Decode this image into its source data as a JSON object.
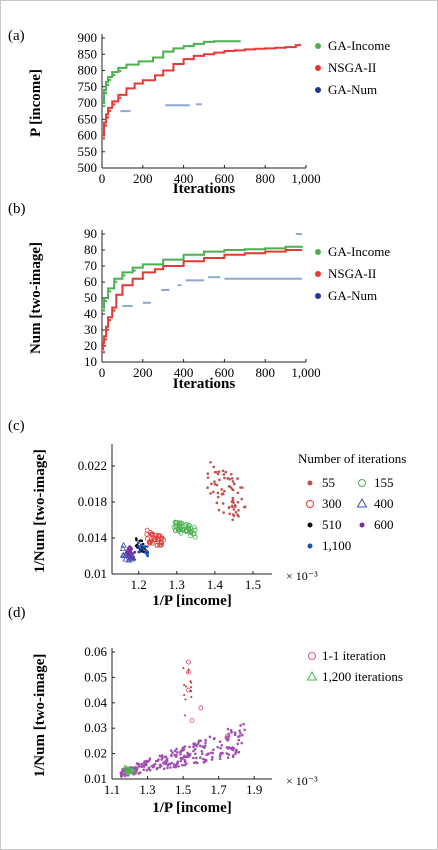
{
  "figure": {
    "border_color": "#c8c8c8"
  },
  "chart_data": [
    {
      "panel_label": "(a)",
      "type": "line",
      "xlabel": "Iterations",
      "ylabel": "P [income]",
      "xlim": [
        0,
        1000
      ],
      "ylim": [
        500,
        900
      ],
      "xticks": [
        "0",
        "200",
        "400",
        "600",
        "800",
        "1,000"
      ],
      "yticks": [
        "500",
        "550",
        "600",
        "650",
        "700",
        "750",
        "800",
        "850",
        "900"
      ],
      "legend_position": "right",
      "series": [
        {
          "name": "GA-Income",
          "color": "#4caf50",
          "x": [
            0,
            10,
            20,
            30,
            50,
            80,
            120,
            180,
            250,
            300,
            350,
            400,
            450,
            500,
            550,
            600,
            680
          ],
          "y": [
            700,
            740,
            765,
            780,
            795,
            808,
            818,
            828,
            840,
            858,
            868,
            875,
            882,
            888,
            890,
            890,
            890
          ]
        },
        {
          "name": "NSGA-II",
          "color": "#e53935",
          "x": [
            0,
            10,
            20,
            30,
            50,
            80,
            120,
            160,
            200,
            260,
            300,
            350,
            400,
            450,
            500,
            550,
            600,
            650,
            700,
            750,
            800,
            850,
            900,
            950,
            970
          ],
          "y": [
            600,
            640,
            665,
            685,
            705,
            725,
            745,
            760,
            770,
            785,
            800,
            820,
            835,
            845,
            850,
            855,
            860,
            862,
            865,
            867,
            868,
            870,
            872,
            878,
            882
          ]
        },
        {
          "name": "GA-Num",
          "color": "#1f3a93",
          "line_color": "#8fa8d0",
          "segments": [
            [
              [
                90,
                675
              ],
              [
                140,
                675
              ]
            ],
            [
              [
                310,
                693
              ],
              [
                430,
                693
              ]
            ],
            [
              [
                460,
                696
              ],
              [
                490,
                696
              ]
            ]
          ]
        }
      ]
    },
    {
      "panel_label": "(b)",
      "type": "line",
      "xlabel": "Iterations",
      "ylabel": "Num [two-image]",
      "xlim": [
        0,
        1000
      ],
      "ylim": [
        10,
        90
      ],
      "xticks": [
        "0",
        "200",
        "400",
        "600",
        "800",
        "1,000"
      ],
      "yticks": [
        "10",
        "20",
        "30",
        "40",
        "50",
        "60",
        "70",
        "80",
        "90"
      ],
      "legend_position": "right",
      "series": [
        {
          "name": "GA-Income",
          "color": "#4caf50",
          "x": [
            0,
            10,
            30,
            60,
            100,
            150,
            200,
            300,
            400,
            500,
            600,
            700,
            800,
            900,
            980
          ],
          "y": [
            44,
            50,
            56,
            62,
            66,
            69,
            71,
            74,
            77,
            79,
            80,
            80.5,
            81,
            82,
            82.5
          ]
        },
        {
          "name": "NSGA-II",
          "color": "#e53935",
          "x": [
            0,
            5,
            10,
            20,
            30,
            50,
            70,
            100,
            150,
            200,
            260,
            300,
            400,
            500,
            600,
            700,
            800,
            900,
            980
          ],
          "y": [
            18,
            22,
            26,
            32,
            38,
            44,
            52,
            58,
            62,
            66,
            68,
            70,
            73,
            75,
            77,
            78,
            79,
            80,
            80
          ]
        },
        {
          "name": "GA-Num",
          "color": "#1f3a93",
          "line_color": "#8fa8d0",
          "segments": [
            [
              [
                100,
                45
              ],
              [
                150,
                45
              ]
            ],
            [
              [
                200,
                47
              ],
              [
                240,
                47
              ]
            ],
            [
              [
                290,
                55
              ],
              [
                330,
                55
              ]
            ],
            [
              [
                370,
                58
              ],
              [
                390,
                58
              ]
            ],
            [
              [
                410,
                61
              ],
              [
                500,
                61
              ]
            ],
            [
              [
                520,
                63
              ],
              [
                580,
                63
              ]
            ],
            [
              [
                600,
                62
              ],
              [
                980,
                62
              ]
            ],
            [
              [
                950,
                90
              ],
              [
                980,
                90
              ]
            ]
          ]
        }
      ]
    },
    {
      "panel_label": "(c)",
      "type": "scatter",
      "xlabel": "1/P [income]",
      "ylabel": "1/Num [two-image]",
      "x_multiplier": "× 10⁻³",
      "xlim": [
        1.13,
        1.55
      ],
      "ylim": [
        0.01,
        0.024
      ],
      "xticks": [
        "1.2",
        "1.3",
        "1.4",
        "1.5"
      ],
      "yticks": [
        "0.01",
        "0.014",
        "0.018",
        "0.022"
      ],
      "legend_title": "Number of iterations",
      "legend_position": "right",
      "series": [
        {
          "name": "55",
          "color": "#c0504d",
          "marker": "dot",
          "center": [
            1.43,
            0.019
          ],
          "spread": [
            0.05,
            0.0025
          ],
          "count": 70
        },
        {
          "name": "155",
          "color": "#4caf50",
          "marker": "circle",
          "center": [
            1.32,
            0.015
          ],
          "spread": [
            0.03,
            0.0006
          ],
          "count": 45
        },
        {
          "name": "300",
          "color": "#e53935",
          "marker": "circle",
          "center": [
            1.245,
            0.0138
          ],
          "spread": [
            0.025,
            0.0007
          ],
          "count": 35
        },
        {
          "name": "400",
          "color": "#3f51b5",
          "marker": "triangle",
          "center": [
            1.17,
            0.0122
          ],
          "spread": [
            0.012,
            0.0007
          ],
          "count": 20
        },
        {
          "name": "510",
          "color": "#111111",
          "marker": "dot",
          "center": [
            1.205,
            0.0132
          ],
          "spread": [
            0.012,
            0.0006
          ],
          "count": 20
        },
        {
          "name": "600",
          "color": "#7b2fa0",
          "marker": "dot",
          "center": [
            1.18,
            0.0124
          ],
          "spread": [
            0.012,
            0.0006
          ],
          "count": 20
        },
        {
          "name": "1,100",
          "color": "#1e4fb5",
          "marker": "dot",
          "center": [
            1.21,
            0.0128
          ],
          "spread": [
            0.015,
            0.0006
          ],
          "count": 22
        }
      ]
    },
    {
      "panel_label": "(d)",
      "type": "scatter",
      "xlabel": "1/P [income]",
      "ylabel": "1/Num [two-image]",
      "x_multiplier": "× 10⁻³",
      "xlim": [
        1.1,
        2.0
      ],
      "ylim": [
        0.01,
        0.06
      ],
      "xticks": [
        "1.1",
        "1.3",
        "1.5",
        "1.7",
        "1.9"
      ],
      "yticks": [
        "0.01",
        "0.02",
        "0.03",
        "0.04",
        "0.05",
        "0.06"
      ],
      "legend_position": "right",
      "series": [
        {
          "name": "1-1 iteration",
          "color": "#e05a8a",
          "marker": "circle"
        },
        {
          "name": "1,200 iterations",
          "color": "#4caf50",
          "marker": "triangle"
        }
      ]
    }
  ]
}
